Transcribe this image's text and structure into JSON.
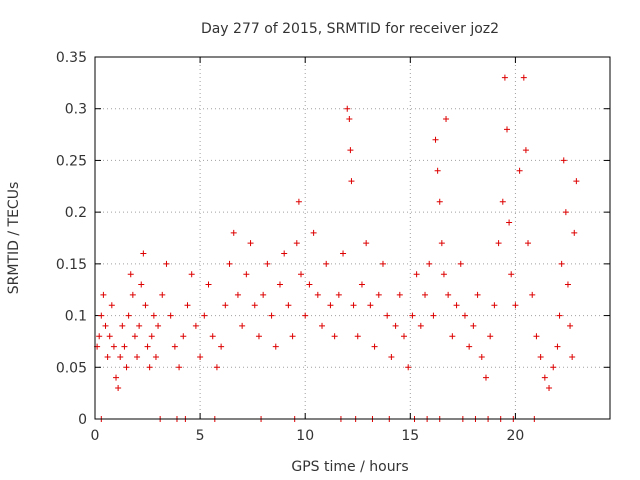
{
  "chart_data": {
    "type": "scatter",
    "title": "Day 277 of 2015, SRMTID for receiver joz2",
    "xlabel": "GPS time / hours",
    "ylabel": "SRMTID / TECUs",
    "xlim": [
      0,
      24.5
    ],
    "ylim": [
      0,
      0.35
    ],
    "xticks": [
      0,
      5,
      10,
      15,
      20
    ],
    "xtick_labels": [
      "0",
      "5",
      "10",
      "15",
      "20"
    ],
    "yticks": [
      0,
      0.05,
      0.1,
      0.15,
      0.2,
      0.25,
      0.3,
      0.35
    ],
    "ytick_labels": [
      "0",
      "0.05",
      "0.1",
      "0.15",
      "0.2",
      "0.25",
      "0.3",
      "0.35"
    ],
    "grid": true,
    "marker": "+",
    "color": "#dd0000",
    "series": [
      {
        "name": "SRMTID",
        "points": [
          [
            0.1,
            0.07
          ],
          [
            0.2,
            0.08
          ],
          [
            0.3,
            0.1
          ],
          [
            0.4,
            0.12
          ],
          [
            0.5,
            0.09
          ],
          [
            0.6,
            0.06
          ],
          [
            0.7,
            0.08
          ],
          [
            0.8,
            0.11
          ],
          [
            0.9,
            0.07
          ],
          [
            1.0,
            0.04
          ],
          [
            1.1,
            0.03
          ],
          [
            1.2,
            0.06
          ],
          [
            1.3,
            0.09
          ],
          [
            1.4,
            0.07
          ],
          [
            1.5,
            0.05
          ],
          [
            1.6,
            0.1
          ],
          [
            1.7,
            0.14
          ],
          [
            1.8,
            0.12
          ],
          [
            1.9,
            0.08
          ],
          [
            2.0,
            0.06
          ],
          [
            2.1,
            0.09
          ],
          [
            2.2,
            0.13
          ],
          [
            2.3,
            0.16
          ],
          [
            2.4,
            0.11
          ],
          [
            2.5,
            0.07
          ],
          [
            2.6,
            0.05
          ],
          [
            2.7,
            0.08
          ],
          [
            2.8,
            0.1
          ],
          [
            2.9,
            0.06
          ],
          [
            3.0,
            0.09
          ],
          [
            3.2,
            0.12
          ],
          [
            3.4,
            0.15
          ],
          [
            3.6,
            0.1
          ],
          [
            3.8,
            0.07
          ],
          [
            4.0,
            0.05
          ],
          [
            4.2,
            0.08
          ],
          [
            4.4,
            0.11
          ],
          [
            4.6,
            0.14
          ],
          [
            4.8,
            0.09
          ],
          [
            5.0,
            0.06
          ],
          [
            5.2,
            0.1
          ],
          [
            5.4,
            0.13
          ],
          [
            5.6,
            0.08
          ],
          [
            5.8,
            0.05
          ],
          [
            6.0,
            0.07
          ],
          [
            6.2,
            0.11
          ],
          [
            6.4,
            0.15
          ],
          [
            6.6,
            0.18
          ],
          [
            6.8,
            0.12
          ],
          [
            7.0,
            0.09
          ],
          [
            7.2,
            0.14
          ],
          [
            7.4,
            0.17
          ],
          [
            7.6,
            0.11
          ],
          [
            7.8,
            0.08
          ],
          [
            8.0,
            0.12
          ],
          [
            8.2,
            0.15
          ],
          [
            8.4,
            0.1
          ],
          [
            8.6,
            0.07
          ],
          [
            8.8,
            0.13
          ],
          [
            9.0,
            0.16
          ],
          [
            9.2,
            0.11
          ],
          [
            9.4,
            0.08
          ],
          [
            9.6,
            0.17
          ],
          [
            9.7,
            0.21
          ],
          [
            9.8,
            0.14
          ],
          [
            10.0,
            0.1
          ],
          [
            10.2,
            0.13
          ],
          [
            10.4,
            0.18
          ],
          [
            10.6,
            0.12
          ],
          [
            10.8,
            0.09
          ],
          [
            11.0,
            0.15
          ],
          [
            11.2,
            0.11
          ],
          [
            11.4,
            0.08
          ],
          [
            11.6,
            0.12
          ],
          [
            11.8,
            0.16
          ],
          [
            12.0,
            0.3
          ],
          [
            12.1,
            0.29
          ],
          [
            12.15,
            0.26
          ],
          [
            12.2,
            0.23
          ],
          [
            12.3,
            0.11
          ],
          [
            12.5,
            0.08
          ],
          [
            12.7,
            0.13
          ],
          [
            12.9,
            0.17
          ],
          [
            13.1,
            0.11
          ],
          [
            13.3,
            0.07
          ],
          [
            13.5,
            0.12
          ],
          [
            13.7,
            0.15
          ],
          [
            13.9,
            0.1
          ],
          [
            14.1,
            0.06
          ],
          [
            14.3,
            0.09
          ],
          [
            14.5,
            0.12
          ],
          [
            14.7,
            0.08
          ],
          [
            14.9,
            0.05
          ],
          [
            15.1,
            0.1
          ],
          [
            15.3,
            0.14
          ],
          [
            15.5,
            0.09
          ],
          [
            15.7,
            0.12
          ],
          [
            15.9,
            0.15
          ],
          [
            16.1,
            0.1
          ],
          [
            16.2,
            0.27
          ],
          [
            16.3,
            0.24
          ],
          [
            16.4,
            0.21
          ],
          [
            16.5,
            0.17
          ],
          [
            16.6,
            0.14
          ],
          [
            16.7,
            0.29
          ],
          [
            16.8,
            0.12
          ],
          [
            17.0,
            0.08
          ],
          [
            17.2,
            0.11
          ],
          [
            17.4,
            0.15
          ],
          [
            17.6,
            0.1
          ],
          [
            17.8,
            0.07
          ],
          [
            18.0,
            0.09
          ],
          [
            18.2,
            0.12
          ],
          [
            18.4,
            0.06
          ],
          [
            18.6,
            0.04
          ],
          [
            18.8,
            0.08
          ],
          [
            19.0,
            0.11
          ],
          [
            19.2,
            0.17
          ],
          [
            19.4,
            0.21
          ],
          [
            19.5,
            0.33
          ],
          [
            19.6,
            0.28
          ],
          [
            19.7,
            0.19
          ],
          [
            19.8,
            0.14
          ],
          [
            20.0,
            0.11
          ],
          [
            20.2,
            0.24
          ],
          [
            20.4,
            0.33
          ],
          [
            20.5,
            0.26
          ],
          [
            20.6,
            0.17
          ],
          [
            20.8,
            0.12
          ],
          [
            21.0,
            0.08
          ],
          [
            21.2,
            0.06
          ],
          [
            21.4,
            0.04
          ],
          [
            21.6,
            0.03
          ],
          [
            21.8,
            0.05
          ],
          [
            22.0,
            0.07
          ],
          [
            22.1,
            0.1
          ],
          [
            22.2,
            0.15
          ],
          [
            22.3,
            0.25
          ],
          [
            22.4,
            0.2
          ],
          [
            22.5,
            0.13
          ],
          [
            22.6,
            0.09
          ],
          [
            22.7,
            0.06
          ],
          [
            22.8,
            0.18
          ],
          [
            22.9,
            0.23
          ],
          [
            0.3,
            0.0
          ],
          [
            3.1,
            0.0
          ],
          [
            3.9,
            0.0
          ],
          [
            4.3,
            0.0
          ],
          [
            5.7,
            0.0
          ],
          [
            7.9,
            0.0
          ],
          [
            9.5,
            0.0
          ],
          [
            11.7,
            0.0
          ],
          [
            12.4,
            0.0
          ],
          [
            13.2,
            0.0
          ],
          [
            14.0,
            0.0
          ],
          [
            15.2,
            0.0
          ],
          [
            15.8,
            0.0
          ],
          [
            16.4,
            0.0
          ],
          [
            17.5,
            0.0
          ],
          [
            18.1,
            0.0
          ],
          [
            18.7,
            0.0
          ],
          [
            19.3,
            0.0
          ],
          [
            19.9,
            0.0
          ],
          [
            20.9,
            0.0
          ]
        ]
      }
    ]
  }
}
